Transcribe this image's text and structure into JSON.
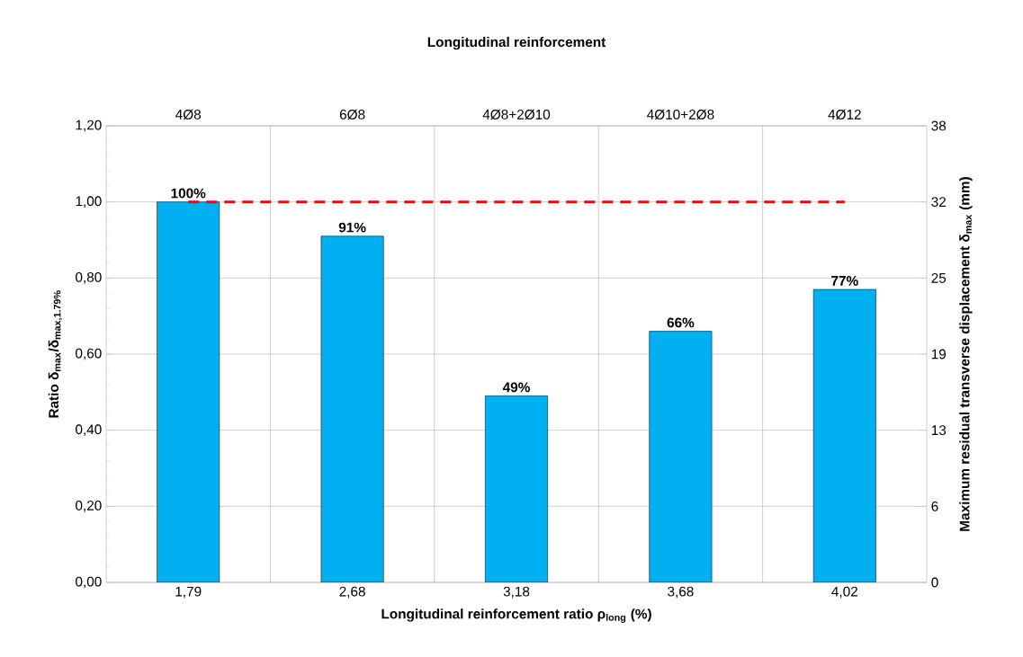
{
  "chart_data": {
    "type": "bar",
    "x2label": "Longitudinal reinforcement",
    "xlabel": "Longitudinal reinforcement ratio ρ$_{long}$ (%)",
    "ylabel": "Ratio δ$_{max}$/δ$_{max,1.79%}$",
    "y2label": "Maximum residual transverse displacement  δ$_{max}$ (mm)",
    "categories": [
      "1,79",
      "2,68",
      "3,18",
      "3,68",
      "4,02"
    ],
    "annotations": [
      "4Ø8",
      "6Ø8",
      "4Ø8+2Ø10",
      "4Ø10+2Ø8",
      "4Ø12"
    ],
    "series": [
      {
        "color": "#00b0f0",
        "values": [
          1.0,
          0.91,
          0.49,
          0.66,
          0.77
        ],
        "value_labels": [
          "100%",
          "91%",
          "49%",
          "66%",
          "77%"
        ]
      },
      {
        "type": "line",
        "color": "#ff0000",
        "line_style": "dashed",
        "marker": "none",
        "values": [
          1.0,
          1.0,
          1.0,
          1.0,
          1.0
        ]
      }
    ],
    "ylim": [
      0,
      1.2
    ],
    "yticks": [
      {
        "value": 0,
        "label": "0,00"
      },
      {
        "value": 0.2,
        "label": "0,20"
      },
      {
        "value": 0.4,
        "label": "0,40"
      },
      {
        "value": 0.6,
        "label": "0,60"
      },
      {
        "value": 0.8,
        "label": "0,80"
      },
      {
        "value": 1.0,
        "label": "1,00"
      },
      {
        "value": 1.2,
        "label": "1,20"
      }
    ],
    "y2lim": [
      0,
      38
    ],
    "y2ticks": [
      0,
      {
        "value": 6.33,
        "label": "6"
      },
      {
        "value": 12.67,
        "label": "13"
      },
      19,
      {
        "value": 25.33,
        "label": "25"
      },
      {
        "value": 31.67,
        "label": "32"
      },
      38
    ],
    "grid": true
  }
}
